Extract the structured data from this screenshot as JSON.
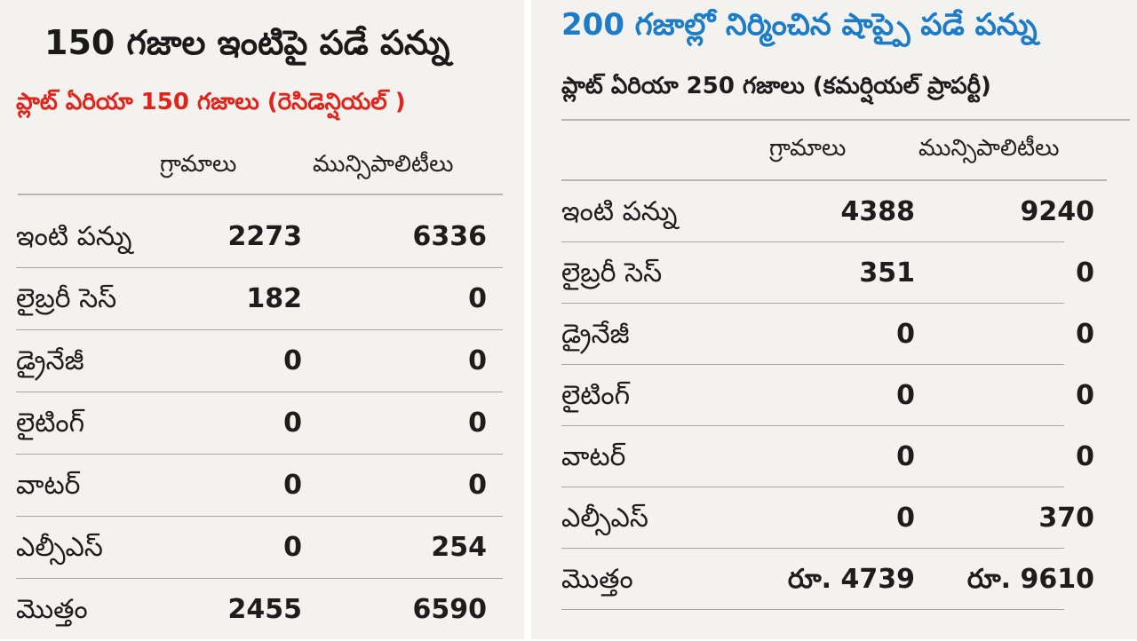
{
  "colors": {
    "left_subtitle": "#e2231a",
    "right_title": "#1c7cc7",
    "panel_bg": "#f4f2ef",
    "text": "#1d1d1d"
  },
  "left": {
    "title": "150 గజాల ఇంటిపై పడే పన్ను",
    "subtitle": "ప్లాట్ ఏరియా 150 గజాలు (రెసిడెన్షియల్ )",
    "col1": "గ్రామాలు",
    "col2": "మున్సిపాలిటీలు",
    "rows": [
      {
        "label": "ఇంటి పన్ను",
        "v1": "2273",
        "v2": "6336"
      },
      {
        "label": "లైబ్రరీ సెస్",
        "v1": "182",
        "v2": "0"
      },
      {
        "label": "డ్రైనేజీ",
        "v1": "0",
        "v2": "0"
      },
      {
        "label": "లైటింగ్",
        "v1": "0",
        "v2": "0"
      },
      {
        "label": "వాటర్",
        "v1": "0",
        "v2": "0"
      },
      {
        "label": "ఎల్సీఎస్",
        "v1": "0",
        "v2": "254"
      },
      {
        "label": "మొత్తం",
        "v1": "2455",
        "v2": "6590"
      }
    ]
  },
  "right": {
    "title": "200 గజాల్లో నిర్మించిన షాప్పై పడే పన్ను",
    "subtitle": "ప్లాట్ ఏరియా 250 గజాలు (కమర్షియల్ ప్రాపర్టీ)",
    "col1": "గ్రామాలు",
    "col2": "మున్సిపాలిటీలు",
    "rows": [
      {
        "label": "ఇంటి పన్ను",
        "v1": "4388",
        "v2": "9240"
      },
      {
        "label": "లైబ్రరీ సెస్",
        "v1": "351",
        "v2": "0"
      },
      {
        "label": "డ్రైనేజీ",
        "v1": "0",
        "v2": "0"
      },
      {
        "label": "లైటింగ్",
        "v1": "0",
        "v2": "0"
      },
      {
        "label": "వాటర్",
        "v1": "0",
        "v2": "0"
      },
      {
        "label": "ఎల్సీఎస్",
        "v1": "0",
        "v2": "370"
      },
      {
        "label": "మొత్తం",
        "v1": "రూ. 4739",
        "v2": "రూ. 9610"
      }
    ]
  }
}
